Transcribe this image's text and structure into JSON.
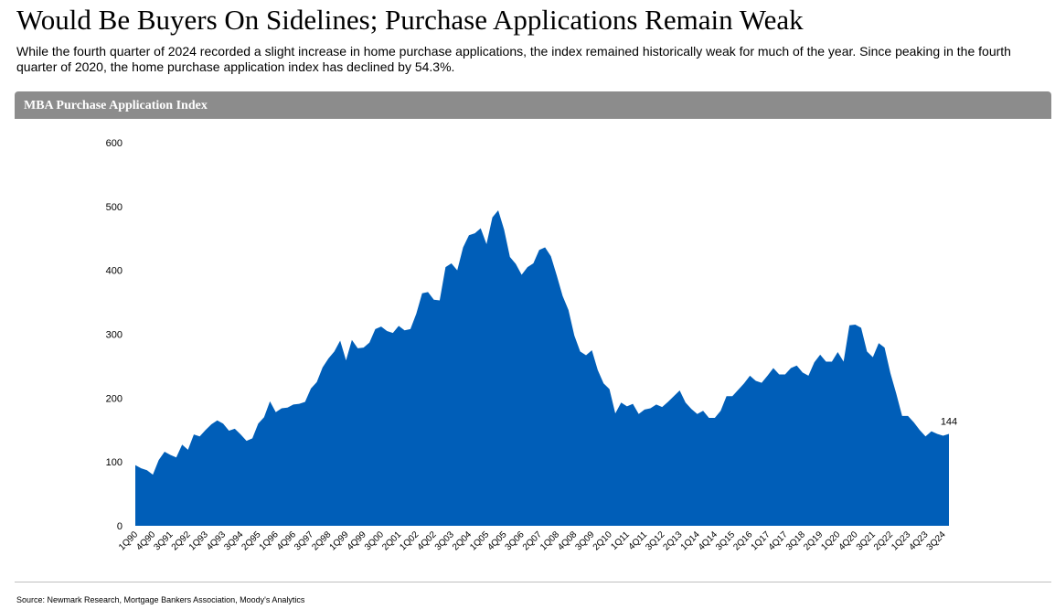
{
  "header": {
    "title": "Would Be Buyers On Sidelines; Purchase Applications Remain Weak",
    "subtitle": "While the fourth quarter of 2024 recorded a slight increase in home purchase applications, the index remained historically weak for much of the year. Since peaking in the fourth quarter of 2020, the home purchase application index has declined by 54.3%."
  },
  "panel": {
    "title": "MBA Purchase Application Index",
    "header_color": "#8c8c8c"
  },
  "footer": {
    "source": "Source: Newmark Research, Mortgage Bankers Association, Moody's Analytics"
  },
  "chart_data": {
    "type": "area",
    "title": "MBA Purchase Application Index",
    "color": "#005eb8",
    "ylim": [
      0,
      600
    ],
    "yticks": [
      0,
      100,
      200,
      300,
      400,
      500,
      600
    ],
    "grid": false,
    "x_start": "1Q90",
    "x_end": "4Q24",
    "tick_labels": [
      "1Q90",
      "4Q90",
      "3Q91",
      "2Q92",
      "1Q93",
      "4Q93",
      "3Q94",
      "2Q95",
      "1Q96",
      "4Q96",
      "3Q97",
      "2Q98",
      "1Q99",
      "4Q99",
      "3Q00",
      "2Q01",
      "1Q02",
      "4Q02",
      "3Q03",
      "2Q04",
      "1Q05",
      "4Q05",
      "3Q06",
      "2Q07",
      "1Q08",
      "4Q08",
      "3Q09",
      "2Q10",
      "1Q11",
      "4Q11",
      "3Q12",
      "2Q13",
      "1Q14",
      "4Q14",
      "3Q15",
      "2Q16",
      "1Q17",
      "4Q17",
      "3Q18",
      "2Q19",
      "1Q20",
      "4Q20",
      "3Q21",
      "2Q22",
      "1Q23",
      "4Q23",
      "3Q24"
    ],
    "values": [
      95,
      90,
      87,
      80,
      103,
      116,
      111,
      107,
      127,
      119,
      143,
      140,
      150,
      159,
      165,
      160,
      149,
      152,
      143,
      133,
      137,
      160,
      170,
      195,
      178,
      184,
      185,
      190,
      191,
      194,
      215,
      225,
      248,
      262,
      273,
      290,
      259,
      291,
      278,
      279,
      287,
      308,
      312,
      305,
      302,
      313,
      306,
      308,
      332,
      364,
      366,
      354,
      353,
      405,
      411,
      400,
      436,
      455,
      458,
      466,
      441,
      483,
      494,
      464,
      421,
      410,
      393,
      405,
      411,
      432,
      436,
      422,
      392,
      360,
      338,
      298,
      273,
      267,
      275,
      244,
      223,
      214,
      176,
      193,
      187,
      191,
      175,
      182,
      184,
      190,
      186,
      194,
      203,
      212,
      193,
      183,
      175,
      180,
      169,
      169,
      180,
      203,
      203,
      213,
      223,
      235,
      227,
      224,
      235,
      247,
      237,
      237,
      247,
      251,
      240,
      235,
      256,
      268,
      257,
      257,
      272,
      257,
      314,
      315,
      310,
      273,
      264,
      286,
      279,
      239,
      207,
      172,
      172,
      162,
      150,
      140,
      148,
      144,
      141,
      144
    ],
    "last_label": "144"
  }
}
